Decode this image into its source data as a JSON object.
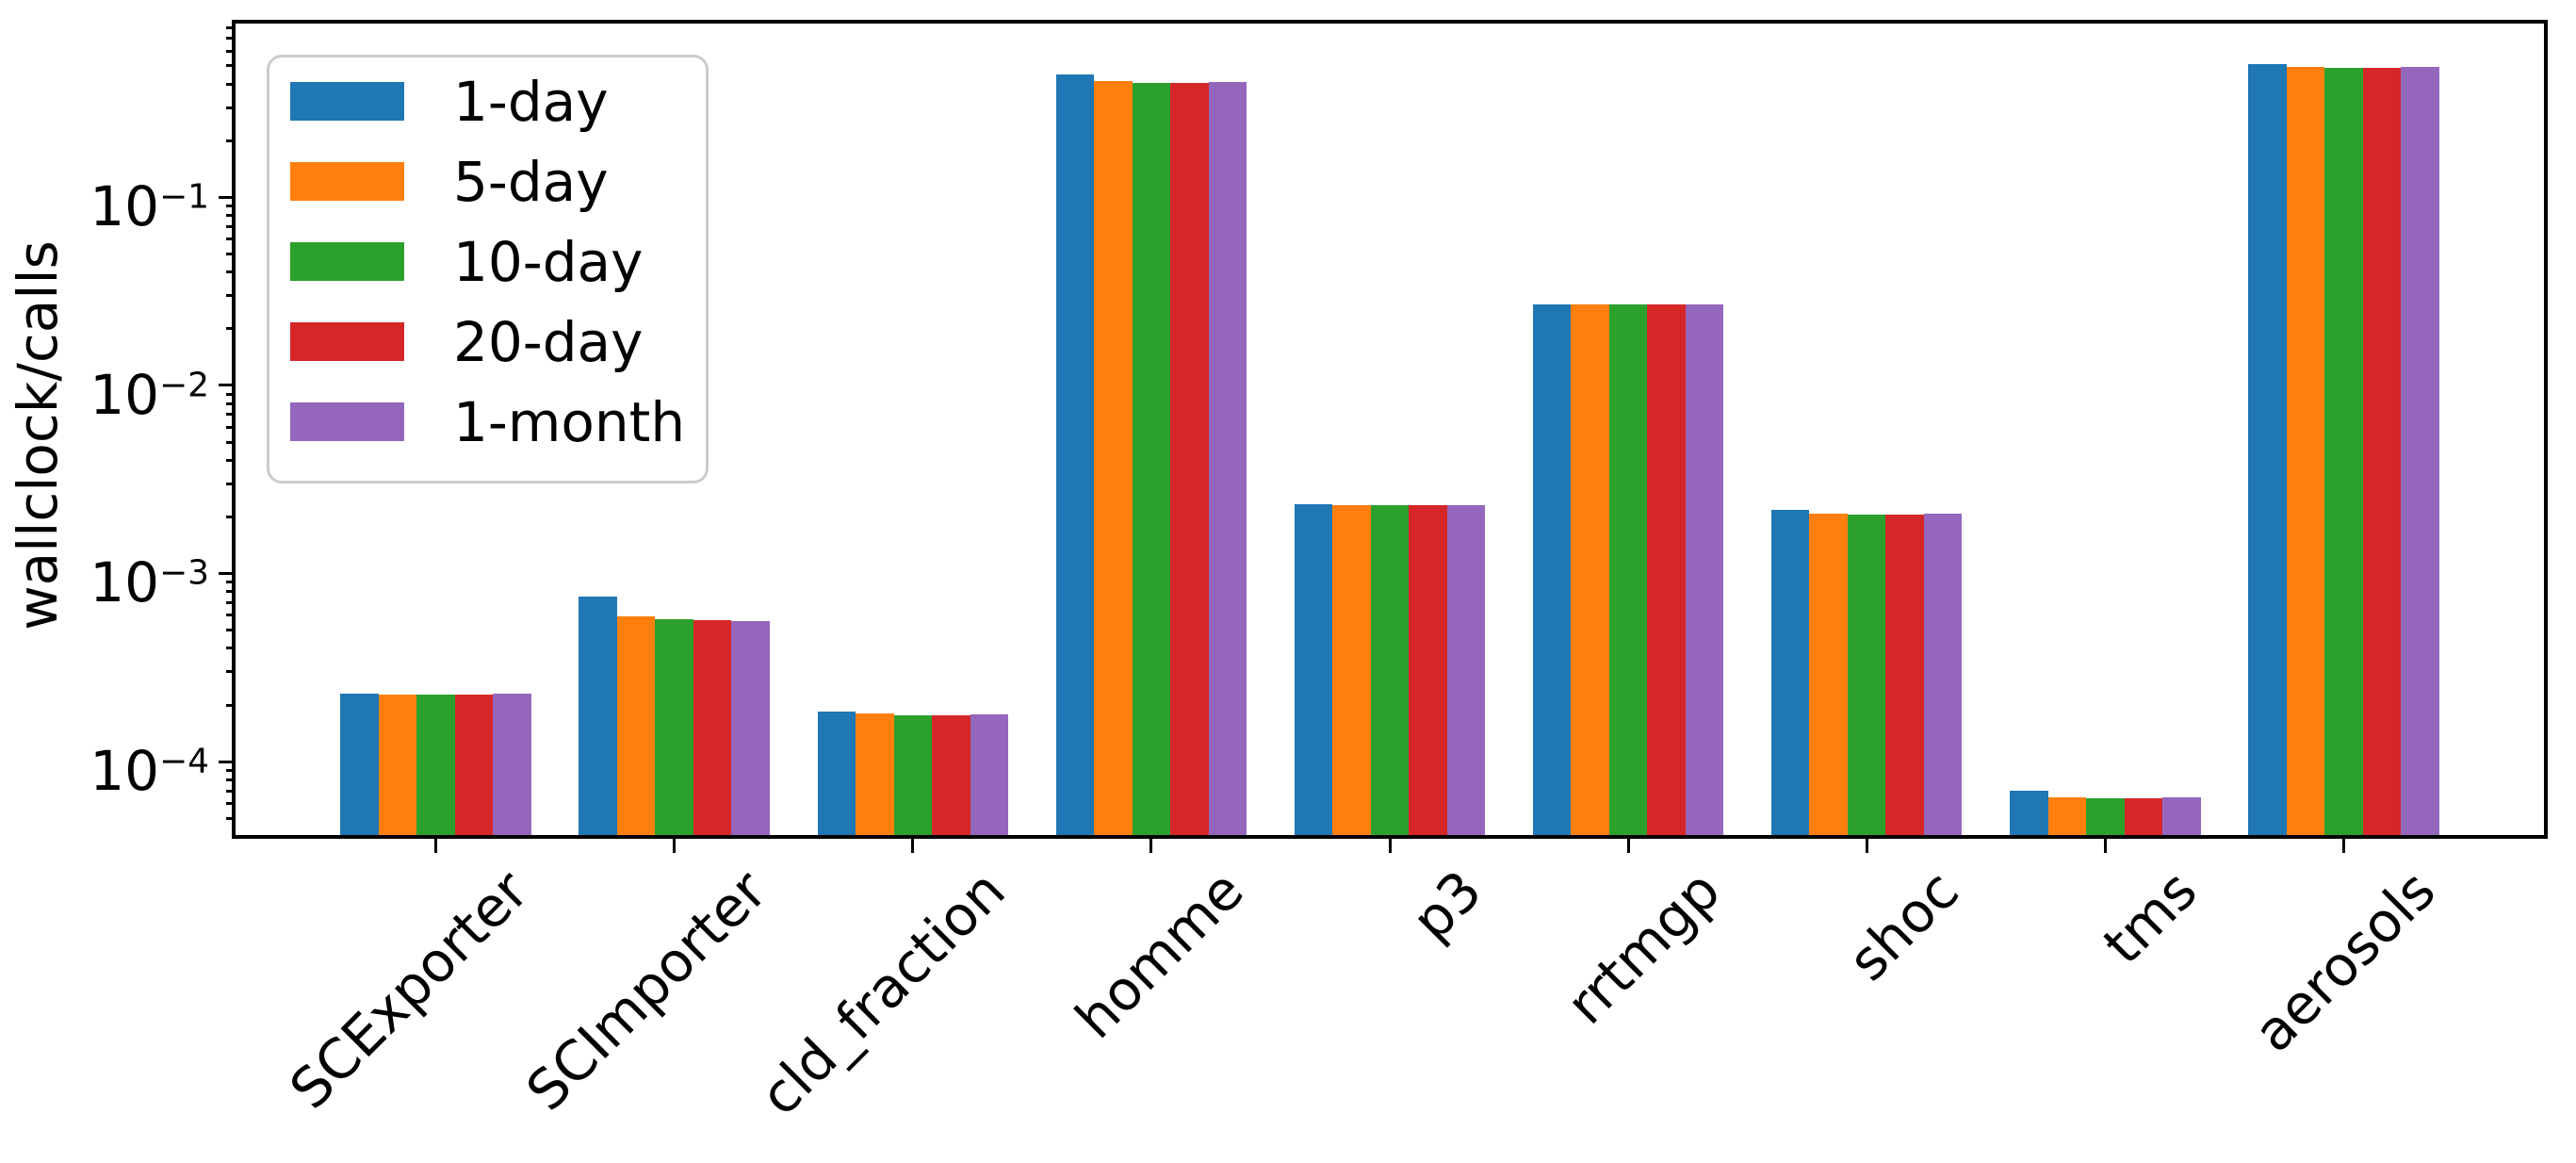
{
  "chart_data": {
    "type": "bar",
    "title": "",
    "ylabel": "wallclock/calls",
    "xlabel": "",
    "y_scale": "log",
    "grid": false,
    "ylim": [
      4.07e-05,
      0.84
    ],
    "xlim": [
      -0.84,
      8.84
    ],
    "bar_group_width": 0.8,
    "x_categories": [
      "SCExporter",
      "SCImporter",
      "cld_fraction",
      "homme",
      "p3",
      "rrtmgp",
      "shoc",
      "tms",
      "aerosols"
    ],
    "series": [
      {
        "name": "1-day",
        "color": "#1f77b4",
        "values": [
          0.00023,
          0.00075,
          0.000185,
          0.45,
          0.00234,
          0.027,
          0.00218,
          7e-05,
          0.51
        ]
      },
      {
        "name": "5-day",
        "color": "#ff7f0e",
        "values": [
          0.000228,
          0.00059,
          0.00018,
          0.417,
          0.00232,
          0.027,
          0.00207,
          6.45e-05,
          0.495
        ]
      },
      {
        "name": "10-day",
        "color": "#2ca02c",
        "values": [
          0.000227,
          0.000575,
          0.000177,
          0.407,
          0.00232,
          0.027,
          0.00206,
          6.38e-05,
          0.49
        ]
      },
      {
        "name": "20-day",
        "color": "#d62728",
        "values": [
          0.000227,
          0.000568,
          0.000177,
          0.407,
          0.00232,
          0.027,
          0.00206,
          6.38e-05,
          0.49
        ]
      },
      {
        "name": "1-month",
        "color": "#9467bd",
        "values": [
          0.000229,
          0.00056,
          0.000179,
          0.412,
          0.00232,
          0.027,
          0.00207,
          6.48e-05,
          0.492
        ]
      }
    ],
    "y_ticks": [
      {
        "value": 0.1,
        "base": "10",
        "exponent": "−1"
      },
      {
        "value": 0.01,
        "base": "10",
        "exponent": "−2"
      },
      {
        "value": 0.001,
        "base": "10",
        "exponent": "−3"
      },
      {
        "value": 0.0001,
        "base": "10",
        "exponent": "−4"
      }
    ],
    "legend": {
      "position": "upper-left",
      "items": [
        "1-day",
        "5-day",
        "10-day",
        "20-day",
        "1-month"
      ]
    }
  }
}
